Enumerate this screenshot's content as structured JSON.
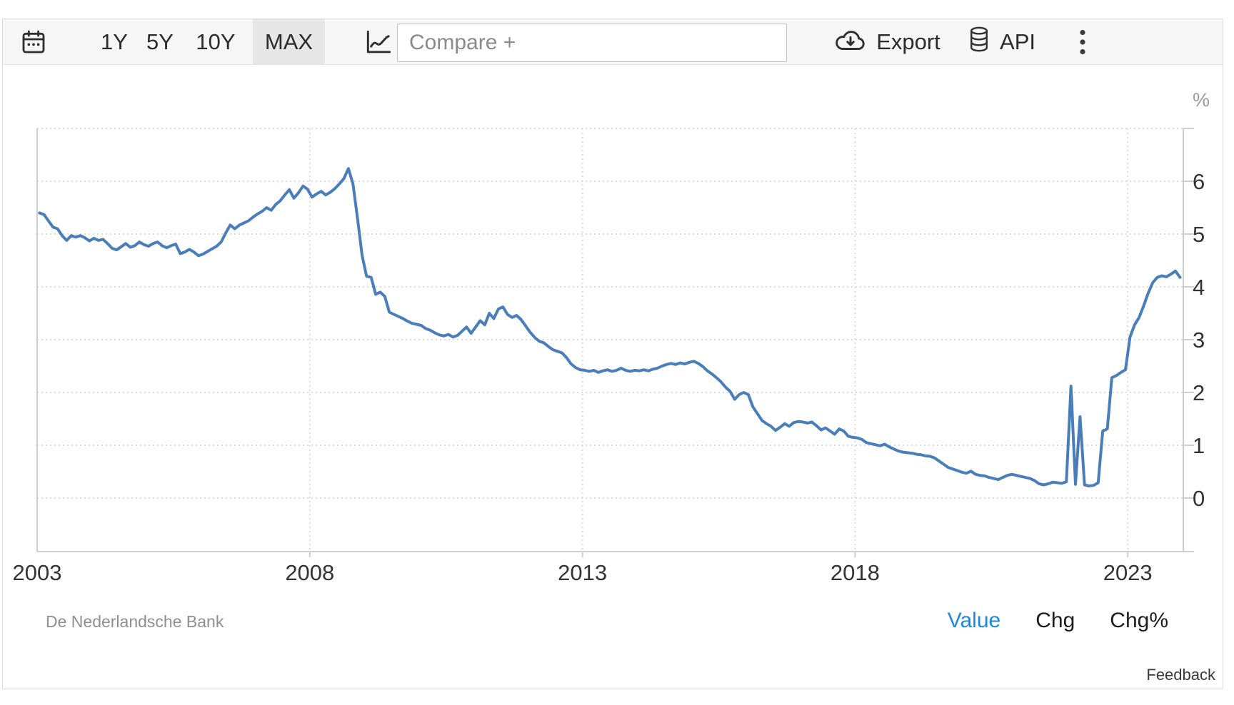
{
  "toolbar": {
    "calendar_icon": "calendar-icon",
    "ranges": [
      {
        "label": "1Y",
        "active": false
      },
      {
        "label": "5Y",
        "active": false
      },
      {
        "label": "10Y",
        "active": false
      },
      {
        "label": "MAX",
        "active": true
      }
    ],
    "chart_type_icon": "line-chart-icon",
    "compare_placeholder": "Compare +",
    "export_label": "Export",
    "export_icon": "cloud-download-icon",
    "api_label": "API",
    "api_icon": "database-icon",
    "more_icon": "kebab-menu-icon"
  },
  "chart_data": {
    "type": "line",
    "title": "",
    "unit": "%",
    "line_color": "#4a7ebb",
    "grid": true,
    "x_start_year": 2003,
    "points_per_year": 12,
    "xticks": [
      2003,
      2008,
      2013,
      2018,
      2023
    ],
    "yticks": [
      0,
      1,
      2,
      3,
      4,
      5,
      6
    ],
    "ylim": [
      -1,
      7
    ],
    "values": [
      5.4,
      5.37,
      5.25,
      5.13,
      5.1,
      4.97,
      4.88,
      4.97,
      4.94,
      4.97,
      4.93,
      4.87,
      4.92,
      4.88,
      4.9,
      4.82,
      4.73,
      4.7,
      4.76,
      4.82,
      4.75,
      4.78,
      4.85,
      4.8,
      4.77,
      4.82,
      4.85,
      4.78,
      4.74,
      4.78,
      4.81,
      4.63,
      4.66,
      4.71,
      4.66,
      4.59,
      4.62,
      4.67,
      4.72,
      4.77,
      4.85,
      5.02,
      5.17,
      5.1,
      5.17,
      5.21,
      5.25,
      5.32,
      5.38,
      5.43,
      5.5,
      5.45,
      5.56,
      5.63,
      5.74,
      5.84,
      5.68,
      5.78,
      5.91,
      5.85,
      5.7,
      5.76,
      5.81,
      5.74,
      5.79,
      5.86,
      5.95,
      6.05,
      6.24,
      5.95,
      5.3,
      4.6,
      4.2,
      4.18,
      3.86,
      3.9,
      3.82,
      3.52,
      3.48,
      3.44,
      3.4,
      3.35,
      3.31,
      3.29,
      3.27,
      3.21,
      3.18,
      3.13,
      3.09,
      3.07,
      3.1,
      3.05,
      3.08,
      3.16,
      3.24,
      3.12,
      3.24,
      3.36,
      3.28,
      3.5,
      3.4,
      3.58,
      3.62,
      3.48,
      3.42,
      3.46,
      3.38,
      3.26,
      3.14,
      3.04,
      2.97,
      2.94,
      2.87,
      2.81,
      2.78,
      2.75,
      2.66,
      2.54,
      2.47,
      2.43,
      2.42,
      2.4,
      2.42,
      2.38,
      2.41,
      2.43,
      2.4,
      2.42,
      2.46,
      2.42,
      2.4,
      2.42,
      2.41,
      2.43,
      2.41,
      2.44,
      2.46,
      2.5,
      2.53,
      2.55,
      2.53,
      2.56,
      2.54,
      2.57,
      2.59,
      2.55,
      2.49,
      2.41,
      2.35,
      2.28,
      2.2,
      2.1,
      2.02,
      1.87,
      1.96,
      2.0,
      1.96,
      1.73,
      1.6,
      1.47,
      1.41,
      1.36,
      1.28,
      1.34,
      1.41,
      1.36,
      1.43,
      1.45,
      1.44,
      1.42,
      1.44,
      1.37,
      1.29,
      1.33,
      1.27,
      1.21,
      1.31,
      1.27,
      1.17,
      1.15,
      1.14,
      1.11,
      1.05,
      1.03,
      1.01,
      0.99,
      1.02,
      0.97,
      0.93,
      0.89,
      0.87,
      0.86,
      0.85,
      0.83,
      0.82,
      0.8,
      0.79,
      0.76,
      0.7,
      0.64,
      0.58,
      0.55,
      0.52,
      0.49,
      0.47,
      0.51,
      0.45,
      0.43,
      0.42,
      0.39,
      0.37,
      0.35,
      0.39,
      0.43,
      0.45,
      0.43,
      0.41,
      0.39,
      0.37,
      0.33,
      0.27,
      0.25,
      0.27,
      0.3,
      0.29,
      0.28,
      0.31,
      2.12,
      0.26,
      1.54,
      0.25,
      0.23,
      0.24,
      0.29,
      1.27,
      1.31,
      2.28,
      2.32,
      2.38,
      2.43,
      3.05,
      3.28,
      3.42,
      3.64,
      3.88,
      4.08,
      4.18,
      4.21,
      4.19,
      4.24,
      4.3,
      4.18
    ]
  },
  "footer": {
    "source": "De Nederlandsche Bank",
    "legend": [
      {
        "label": "Value",
        "active": true
      },
      {
        "label": "Chg",
        "active": false
      },
      {
        "label": "Chg%",
        "active": false
      }
    ],
    "active_color": "#1f87e0",
    "feedback": "Feedback"
  },
  "colors": {
    "axis_text": "#333333",
    "grid": "#dcdcdc",
    "axis_line": "#cfcfcf",
    "unit_label": "#999999"
  }
}
